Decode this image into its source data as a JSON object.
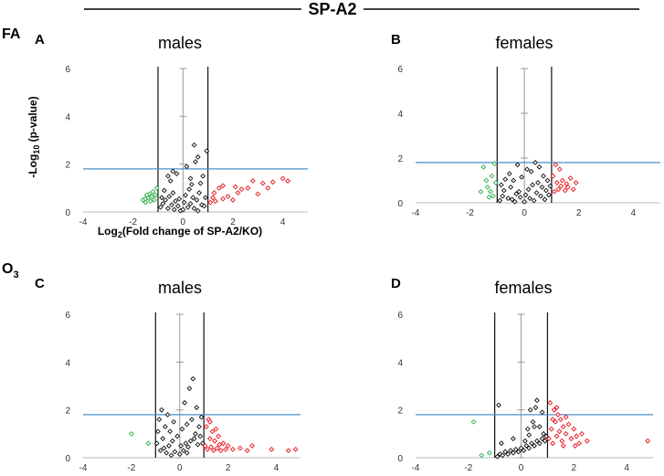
{
  "figure": {
    "title": "SP-A2",
    "group_labels": {
      "fa": "FA",
      "o3_main": "O",
      "o3_sub": "3"
    },
    "axis_labels": {
      "ylabel_main": "-Log",
      "ylabel_sub": "10",
      "ylabel_rest": " (p-value)",
      "xlabel_main": "Log",
      "xlabel_sub": "2",
      "xlabel_rest": "(Fold change of SP-A2/KO)"
    }
  },
  "colors": {
    "down": "#2eb24a",
    "up": "#e8141c",
    "ns": "#111111",
    "threshold": "#4a8fc8",
    "fc_line": "#111111",
    "zero_line": "#999999"
  },
  "chart_data": [
    {
      "id": "A",
      "label": "A",
      "title": "males",
      "type": "scatter",
      "xlim": [
        -4,
        5
      ],
      "ylim": [
        0,
        6
      ],
      "xticks": [
        -4,
        -2,
        0,
        2,
        4
      ],
      "yticks": [
        0,
        2,
        4,
        6
      ],
      "p_threshold": 1.8,
      "fc_thresholds": [
        -1,
        1
      ],
      "down": [
        [
          -1.6,
          0.5
        ],
        [
          -1.5,
          0.55
        ],
        [
          -1.4,
          0.6
        ],
        [
          -1.35,
          0.75
        ],
        [
          -1.3,
          0.45
        ],
        [
          -1.25,
          0.65
        ],
        [
          -1.2,
          0.85
        ],
        [
          -1.15,
          0.5
        ],
        [
          -1.1,
          0.7
        ],
        [
          -1.05,
          1.0
        ],
        [
          -1.5,
          0.4
        ],
        [
          -1.45,
          0.7
        ]
      ],
      "ns": [
        [
          -0.9,
          0.2
        ],
        [
          -0.8,
          0.35
        ],
        [
          -0.75,
          0.9
        ],
        [
          -0.7,
          0.5
        ],
        [
          -0.6,
          0.15
        ],
        [
          -0.55,
          0.65
        ],
        [
          -0.5,
          1.3
        ],
        [
          -0.45,
          0.3
        ],
        [
          -0.4,
          0.8
        ],
        [
          -0.35,
          0.1
        ],
        [
          -0.3,
          0.45
        ],
        [
          -0.25,
          1.6
        ],
        [
          -0.2,
          0.25
        ],
        [
          -0.15,
          0.55
        ],
        [
          -0.1,
          0.05
        ],
        [
          0.0,
          0.1
        ],
        [
          0.05,
          0.4
        ],
        [
          0.1,
          0.7
        ],
        [
          0.15,
          1.9
        ],
        [
          0.2,
          0.2
        ],
        [
          0.25,
          0.95
        ],
        [
          0.3,
          0.35
        ],
        [
          0.35,
          1.15
        ],
        [
          0.4,
          0.6
        ],
        [
          0.45,
          0.15
        ],
        [
          0.5,
          2.1
        ],
        [
          0.55,
          0.5
        ],
        [
          0.6,
          2.3
        ],
        [
          0.65,
          0.8
        ],
        [
          0.7,
          1.2
        ],
        [
          0.75,
          0.3
        ],
        [
          0.8,
          1.5
        ],
        [
          0.85,
          0.25
        ],
        [
          0.9,
          0.6
        ],
        [
          0.95,
          2.55
        ],
        [
          -0.6,
          1.5
        ],
        [
          -0.4,
          1.7
        ],
        [
          0.3,
          1.4
        ],
        [
          -0.85,
          0.6
        ],
        [
          0.6,
          0.05
        ],
        [
          0.45,
          2.8
        ]
      ],
      "up": [
        [
          1.1,
          0.4
        ],
        [
          1.2,
          0.6
        ],
        [
          1.3,
          0.45
        ],
        [
          1.45,
          1.0
        ],
        [
          1.6,
          0.55
        ],
        [
          1.8,
          0.65
        ],
        [
          2.0,
          0.5
        ],
        [
          2.2,
          0.8
        ],
        [
          2.35,
          0.95
        ],
        [
          2.6,
          1.0
        ],
        [
          2.8,
          1.3
        ],
        [
          3.0,
          0.75
        ],
        [
          3.2,
          1.2
        ],
        [
          3.4,
          1.0
        ],
        [
          3.6,
          1.25
        ],
        [
          4.0,
          1.4
        ],
        [
          4.2,
          1.3
        ],
        [
          1.25,
          0.8
        ],
        [
          1.6,
          1.1
        ],
        [
          2.1,
          1.05
        ]
      ]
    },
    {
      "id": "B",
      "label": "B",
      "title": "females",
      "type": "scatter",
      "xlim": [
        -4,
        5
      ],
      "ylim": [
        0,
        6
      ],
      "xticks": [
        -4,
        -2,
        0,
        2,
        4
      ],
      "yticks": [
        0,
        2,
        4,
        6
      ],
      "p_threshold": 1.8,
      "fc_thresholds": [
        -1,
        1
      ],
      "down": [
        [
          -1.5,
          1.6
        ],
        [
          -1.4,
          1.0
        ],
        [
          -1.35,
          0.7
        ],
        [
          -1.25,
          0.5
        ],
        [
          -1.2,
          1.2
        ],
        [
          -1.15,
          0.3
        ],
        [
          -1.1,
          1.75
        ],
        [
          -1.05,
          0.9
        ],
        [
          -1.6,
          0.5
        ],
        [
          -1.3,
          0.25
        ]
      ],
      "ns": [
        [
          -0.9,
          0.1
        ],
        [
          -0.8,
          0.3
        ],
        [
          -0.75,
          0.55
        ],
        [
          -0.7,
          1.05
        ],
        [
          -0.6,
          0.2
        ],
        [
          -0.5,
          0.7
        ],
        [
          -0.45,
          0.15
        ],
        [
          -0.4,
          1.0
        ],
        [
          -0.35,
          0.05
        ],
        [
          -0.3,
          0.4
        ],
        [
          -0.25,
          1.7
        ],
        [
          -0.2,
          0.5
        ],
        [
          -0.15,
          0.25
        ],
        [
          -0.1,
          1.15
        ],
        [
          0.0,
          0.05
        ],
        [
          0.05,
          0.35
        ],
        [
          0.1,
          1.5
        ],
        [
          0.15,
          0.6
        ],
        [
          0.2,
          0.2
        ],
        [
          0.25,
          1.4
        ],
        [
          0.3,
          0.8
        ],
        [
          0.35,
          0.1
        ],
        [
          0.4,
          1.8
        ],
        [
          0.45,
          0.45
        ],
        [
          0.5,
          0.9
        ],
        [
          0.55,
          1.6
        ],
        [
          0.6,
          0.3
        ],
        [
          0.65,
          0.7
        ],
        [
          0.7,
          1.2
        ],
        [
          0.75,
          0.15
        ],
        [
          0.8,
          0.55
        ],
        [
          0.85,
          1.0
        ],
        [
          0.9,
          0.35
        ],
        [
          0.95,
          0.75
        ],
        [
          -0.55,
          1.3
        ],
        [
          -0.85,
          0.8
        ]
      ],
      "up": [
        [
          1.05,
          1.2
        ],
        [
          1.1,
          0.5
        ],
        [
          1.15,
          1.7
        ],
        [
          1.2,
          0.9
        ],
        [
          1.25,
          0.6
        ],
        [
          1.3,
          1.5
        ],
        [
          1.35,
          0.75
        ],
        [
          1.4,
          1.0
        ],
        [
          1.5,
          0.55
        ],
        [
          1.55,
          0.85
        ],
        [
          1.6,
          0.7
        ],
        [
          1.7,
          1.1
        ],
        [
          1.8,
          0.6
        ],
        [
          1.9,
          0.9
        ]
      ]
    },
    {
      "id": "C",
      "label": "C",
      "title": "males",
      "type": "scatter",
      "xlim": [
        -4,
        5
      ],
      "ylim": [
        0,
        6
      ],
      "xticks": [
        -4,
        -2,
        0,
        2,
        4
      ],
      "yticks": [
        0,
        2,
        4,
        6
      ],
      "p_threshold": 1.8,
      "fc_thresholds": [
        -1,
        1
      ],
      "down": [
        [
          -2.0,
          1.0
        ],
        [
          -1.3,
          0.6
        ]
      ],
      "ns": [
        [
          -0.95,
          0.6
        ],
        [
          -0.9,
          1.1
        ],
        [
          -0.85,
          1.6
        ],
        [
          -0.8,
          0.3
        ],
        [
          -0.75,
          2.0
        ],
        [
          -0.7,
          0.8
        ],
        [
          -0.6,
          1.3
        ],
        [
          -0.55,
          0.2
        ],
        [
          -0.5,
          1.8
        ],
        [
          -0.45,
          0.5
        ],
        [
          -0.4,
          1.1
        ],
        [
          -0.35,
          0.1
        ],
        [
          -0.3,
          0.7
        ],
        [
          -0.25,
          1.5
        ],
        [
          -0.2,
          0.25
        ],
        [
          -0.1,
          0.9
        ],
        [
          0.0,
          0.15
        ],
        [
          0.05,
          0.5
        ],
        [
          0.1,
          1.2
        ],
        [
          0.15,
          0.3
        ],
        [
          0.2,
          2.3
        ],
        [
          0.25,
          0.6
        ],
        [
          0.3,
          1.4
        ],
        [
          0.35,
          0.45
        ],
        [
          0.4,
          2.9
        ],
        [
          0.45,
          0.7
        ],
        [
          0.5,
          1.6
        ],
        [
          0.55,
          3.3
        ],
        [
          0.6,
          0.8
        ],
        [
          0.65,
          1.0
        ],
        [
          0.7,
          2.1
        ],
        [
          0.75,
          0.55
        ],
        [
          0.8,
          1.3
        ],
        [
          0.85,
          0.9
        ],
        [
          0.9,
          1.7
        ],
        [
          0.95,
          0.6
        ],
        [
          -0.65,
          0.4
        ],
        [
          0.3,
          0.2
        ]
      ],
      "up": [
        [
          1.05,
          0.5
        ],
        [
          1.1,
          1.3
        ],
        [
          1.15,
          0.35
        ],
        [
          1.2,
          1.6
        ],
        [
          1.25,
          0.8
        ],
        [
          1.3,
          0.45
        ],
        [
          1.35,
          1.1
        ],
        [
          1.4,
          0.3
        ],
        [
          1.45,
          0.7
        ],
        [
          1.5,
          1.2
        ],
        [
          1.55,
          0.4
        ],
        [
          1.6,
          0.9
        ],
        [
          1.7,
          0.3
        ],
        [
          1.8,
          0.6
        ],
        [
          1.9,
          0.35
        ],
        [
          2.0,
          0.5
        ],
        [
          2.2,
          0.35
        ],
        [
          2.5,
          0.4
        ],
        [
          2.8,
          0.3
        ],
        [
          3.0,
          0.5
        ],
        [
          3.8,
          0.35
        ],
        [
          4.5,
          0.3
        ],
        [
          4.8,
          0.35
        ],
        [
          1.25,
          1.5
        ],
        [
          1.65,
          0.55
        ]
      ]
    },
    {
      "id": "D",
      "label": "D",
      "title": "females",
      "type": "scatter",
      "xlim": [
        -4,
        5
      ],
      "ylim": [
        0,
        6
      ],
      "xticks": [
        -4,
        -2,
        0,
        2,
        4
      ],
      "yticks": [
        0,
        2,
        4,
        6
      ],
      "p_threshold": 1.8,
      "fc_thresholds": [
        -1,
        1
      ],
      "down": [
        [
          -1.8,
          1.5
        ],
        [
          -1.5,
          0.1
        ],
        [
          -1.2,
          0.2
        ]
      ],
      "ns": [
        [
          -0.9,
          0.05
        ],
        [
          -0.8,
          0.15
        ],
        [
          -0.7,
          0.1
        ],
        [
          -0.6,
          0.25
        ],
        [
          -0.5,
          0.15
        ],
        [
          -0.4,
          0.3
        ],
        [
          -0.3,
          0.2
        ],
        [
          -0.2,
          0.35
        ],
        [
          -0.1,
          0.25
        ],
        [
          0.0,
          0.4
        ],
        [
          0.1,
          0.3
        ],
        [
          0.2,
          0.5
        ],
        [
          0.3,
          0.4
        ],
        [
          0.4,
          0.6
        ],
        [
          0.5,
          0.5
        ],
        [
          0.6,
          0.7
        ],
        [
          0.7,
          0.6
        ],
        [
          0.8,
          0.8
        ],
        [
          0.9,
          0.7
        ],
        [
          0.95,
          0.9
        ],
        [
          -0.85,
          2.2
        ],
        [
          -0.75,
          0.6
        ],
        [
          0.25,
          1.2
        ],
        [
          0.35,
          2.0
        ],
        [
          0.45,
          1.5
        ],
        [
          0.55,
          2.1
        ],
        [
          0.6,
          2.4
        ],
        [
          0.7,
          1.3
        ],
        [
          0.8,
          1.9
        ],
        [
          0.85,
          1.0
        ],
        [
          0.3,
          0.95
        ],
        [
          0.5,
          1.3
        ],
        [
          -0.3,
          0.8
        ],
        [
          0.15,
          0.7
        ]
      ],
      "up": [
        [
          1.05,
          0.8
        ],
        [
          1.1,
          2.3
        ],
        [
          1.15,
          1.2
        ],
        [
          1.2,
          0.6
        ],
        [
          1.25,
          2.0
        ],
        [
          1.3,
          1.5
        ],
        [
          1.35,
          0.9
        ],
        [
          1.4,
          1.8
        ],
        [
          1.45,
          1.1
        ],
        [
          1.5,
          1.6
        ],
        [
          1.55,
          0.7
        ],
        [
          1.6,
          1.3
        ],
        [
          1.7,
          1.0
        ],
        [
          1.8,
          1.4
        ],
        [
          1.9,
          0.8
        ],
        [
          2.0,
          1.2
        ],
        [
          2.1,
          0.9
        ],
        [
          2.2,
          0.6
        ],
        [
          2.3,
          1.0
        ],
        [
          2.5,
          0.7
        ],
        [
          1.2,
          1.6
        ],
        [
          1.35,
          2.1
        ],
        [
          1.7,
          1.7
        ],
        [
          2.05,
          0.5
        ],
        [
          1.6,
          0.5
        ],
        [
          4.8,
          0.7
        ]
      ]
    }
  ]
}
